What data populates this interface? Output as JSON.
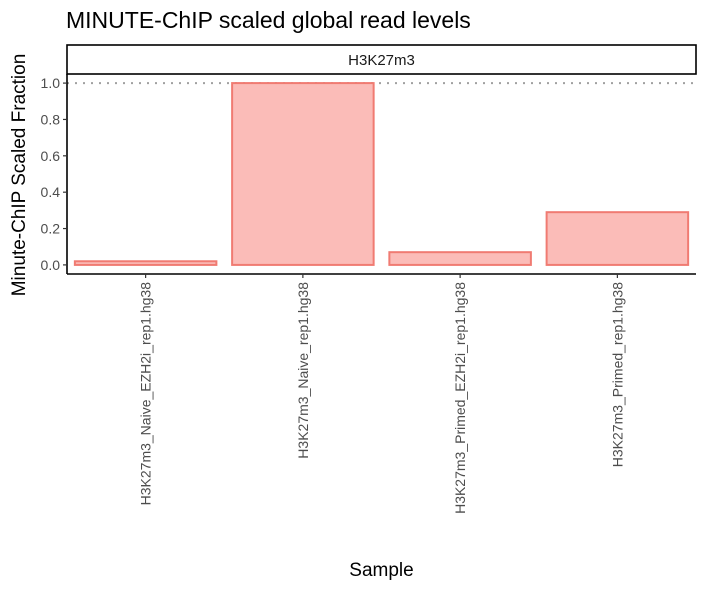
{
  "chart_data": {
    "type": "bar",
    "title": "MINUTE-ChIP scaled global read levels",
    "facet_label": "H3K27m3",
    "xlabel": "Sample",
    "ylabel": "Minute-ChIP Scaled Fraction",
    "categories": [
      "H3K27m3_Naive_EZH2i_rep1.hg38",
      "H3K27m3_Naive_rep1.hg38",
      "H3K27m3_Primed_EZH2i_rep1.hg38",
      "H3K27m3_Primed_rep1.hg38"
    ],
    "values": [
      0.02,
      1.0,
      0.07,
      0.29
    ],
    "ylim": [
      -0.05,
      1.05
    ],
    "yticks": [
      "0.0",
      "0.2",
      "0.4",
      "0.6",
      "0.8",
      "1.0"
    ],
    "reference_line": 1.0,
    "grid": false,
    "legend": "none",
    "colors": {
      "bar_fill": "#fbbcb8",
      "bar_stroke": "#f07b72",
      "reference_line": "#a0a0a0"
    }
  }
}
